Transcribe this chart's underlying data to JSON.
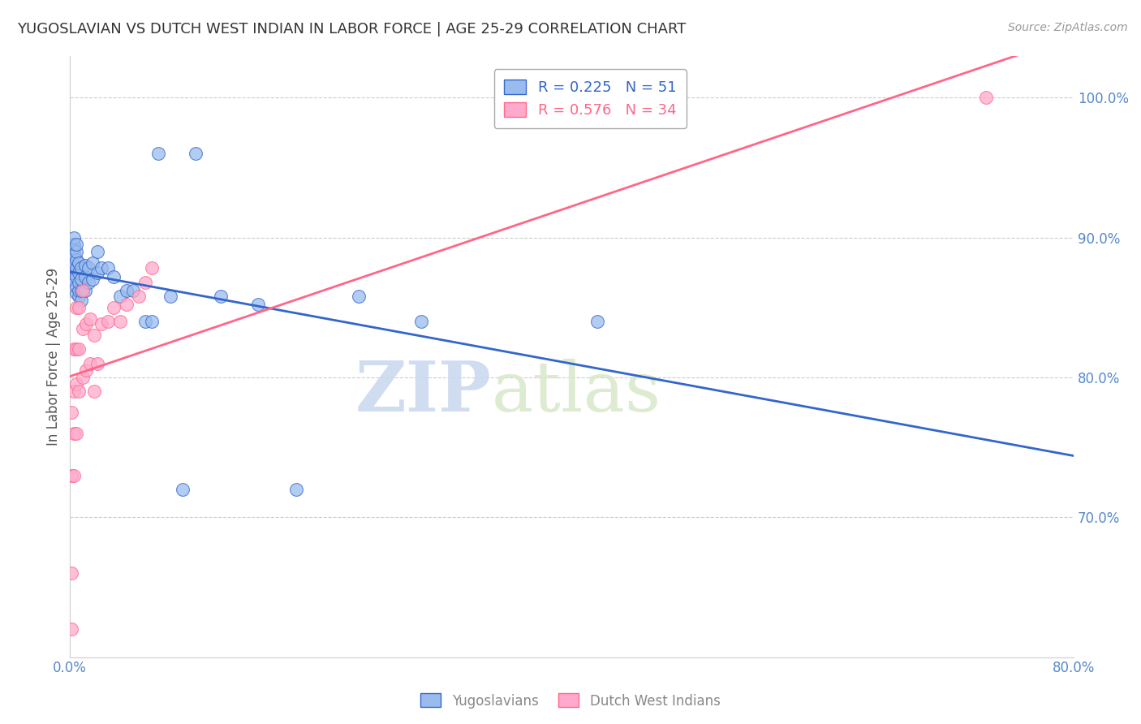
{
  "title": "YUGOSLAVIAN VS DUTCH WEST INDIAN IN LABOR FORCE | AGE 25-29 CORRELATION CHART",
  "source": "Source: ZipAtlas.com",
  "ylabel": "In Labor Force | Age 25-29",
  "x_tick_labels": [
    "0.0%",
    "",
    "",
    "",
    "",
    "",
    "",
    "",
    "80.0%"
  ],
  "x_tick_values": [
    0.0,
    0.1,
    0.2,
    0.3,
    0.4,
    0.5,
    0.6,
    0.7,
    0.8
  ],
  "y_tick_labels": [
    "100.0%",
    "90.0%",
    "80.0%",
    "70.0%"
  ],
  "y_tick_values": [
    1.0,
    0.9,
    0.8,
    0.7
  ],
  "xlim": [
    0.0,
    0.8
  ],
  "ylim": [
    0.6,
    1.03
  ],
  "legend_label_blue": "Yugoslavians",
  "legend_label_pink": "Dutch West Indians",
  "blue_color": "#99BBEE",
  "pink_color": "#FFAACC",
  "blue_line_color": "#3366CC",
  "pink_line_color": "#FF6688",
  "watermark_zip": "ZIP",
  "watermark_atlas": "atlas",
  "background_color": "#FFFFFF",
  "title_color": "#333333",
  "axis_color": "#5588CC",
  "grid_color": "#CCCCCC",
  "blue_x": [
    0.002,
    0.002,
    0.003,
    0.003,
    0.003,
    0.003,
    0.003,
    0.003,
    0.005,
    0.005,
    0.005,
    0.005,
    0.005,
    0.005,
    0.005,
    0.007,
    0.007,
    0.007,
    0.007,
    0.007,
    0.009,
    0.009,
    0.009,
    0.009,
    0.012,
    0.012,
    0.012,
    0.015,
    0.015,
    0.018,
    0.018,
    0.022,
    0.022,
    0.025,
    0.03,
    0.035,
    0.04,
    0.045,
    0.05,
    0.06,
    0.065,
    0.07,
    0.08,
    0.09,
    0.1,
    0.12,
    0.15,
    0.18,
    0.23,
    0.28,
    0.42
  ],
  "blue_y": [
    0.87,
    0.875,
    0.878,
    0.882,
    0.888,
    0.892,
    0.895,
    0.9,
    0.86,
    0.865,
    0.872,
    0.878,
    0.884,
    0.89,
    0.895,
    0.858,
    0.862,
    0.868,
    0.875,
    0.882,
    0.855,
    0.862,
    0.87,
    0.878,
    0.862,
    0.872,
    0.88,
    0.868,
    0.878,
    0.87,
    0.882,
    0.875,
    0.89,
    0.878,
    0.878,
    0.872,
    0.858,
    0.862,
    0.862,
    0.84,
    0.84,
    0.96,
    0.858,
    0.72,
    0.96,
    0.858,
    0.852,
    0.72,
    0.858,
    0.84,
    0.84
  ],
  "pink_x": [
    0.001,
    0.001,
    0.001,
    0.001,
    0.003,
    0.003,
    0.003,
    0.003,
    0.005,
    0.005,
    0.005,
    0.005,
    0.007,
    0.007,
    0.007,
    0.01,
    0.01,
    0.01,
    0.013,
    0.013,
    0.016,
    0.016,
    0.019,
    0.019,
    0.022,
    0.025,
    0.03,
    0.035,
    0.04,
    0.045,
    0.055,
    0.06,
    0.065,
    0.73
  ],
  "pink_y": [
    0.62,
    0.66,
    0.73,
    0.775,
    0.73,
    0.76,
    0.79,
    0.82,
    0.76,
    0.795,
    0.82,
    0.85,
    0.79,
    0.82,
    0.85,
    0.8,
    0.835,
    0.862,
    0.805,
    0.838,
    0.81,
    0.842,
    0.79,
    0.83,
    0.81,
    0.838,
    0.84,
    0.85,
    0.84,
    0.852,
    0.858,
    0.868,
    0.878,
    1.0
  ]
}
